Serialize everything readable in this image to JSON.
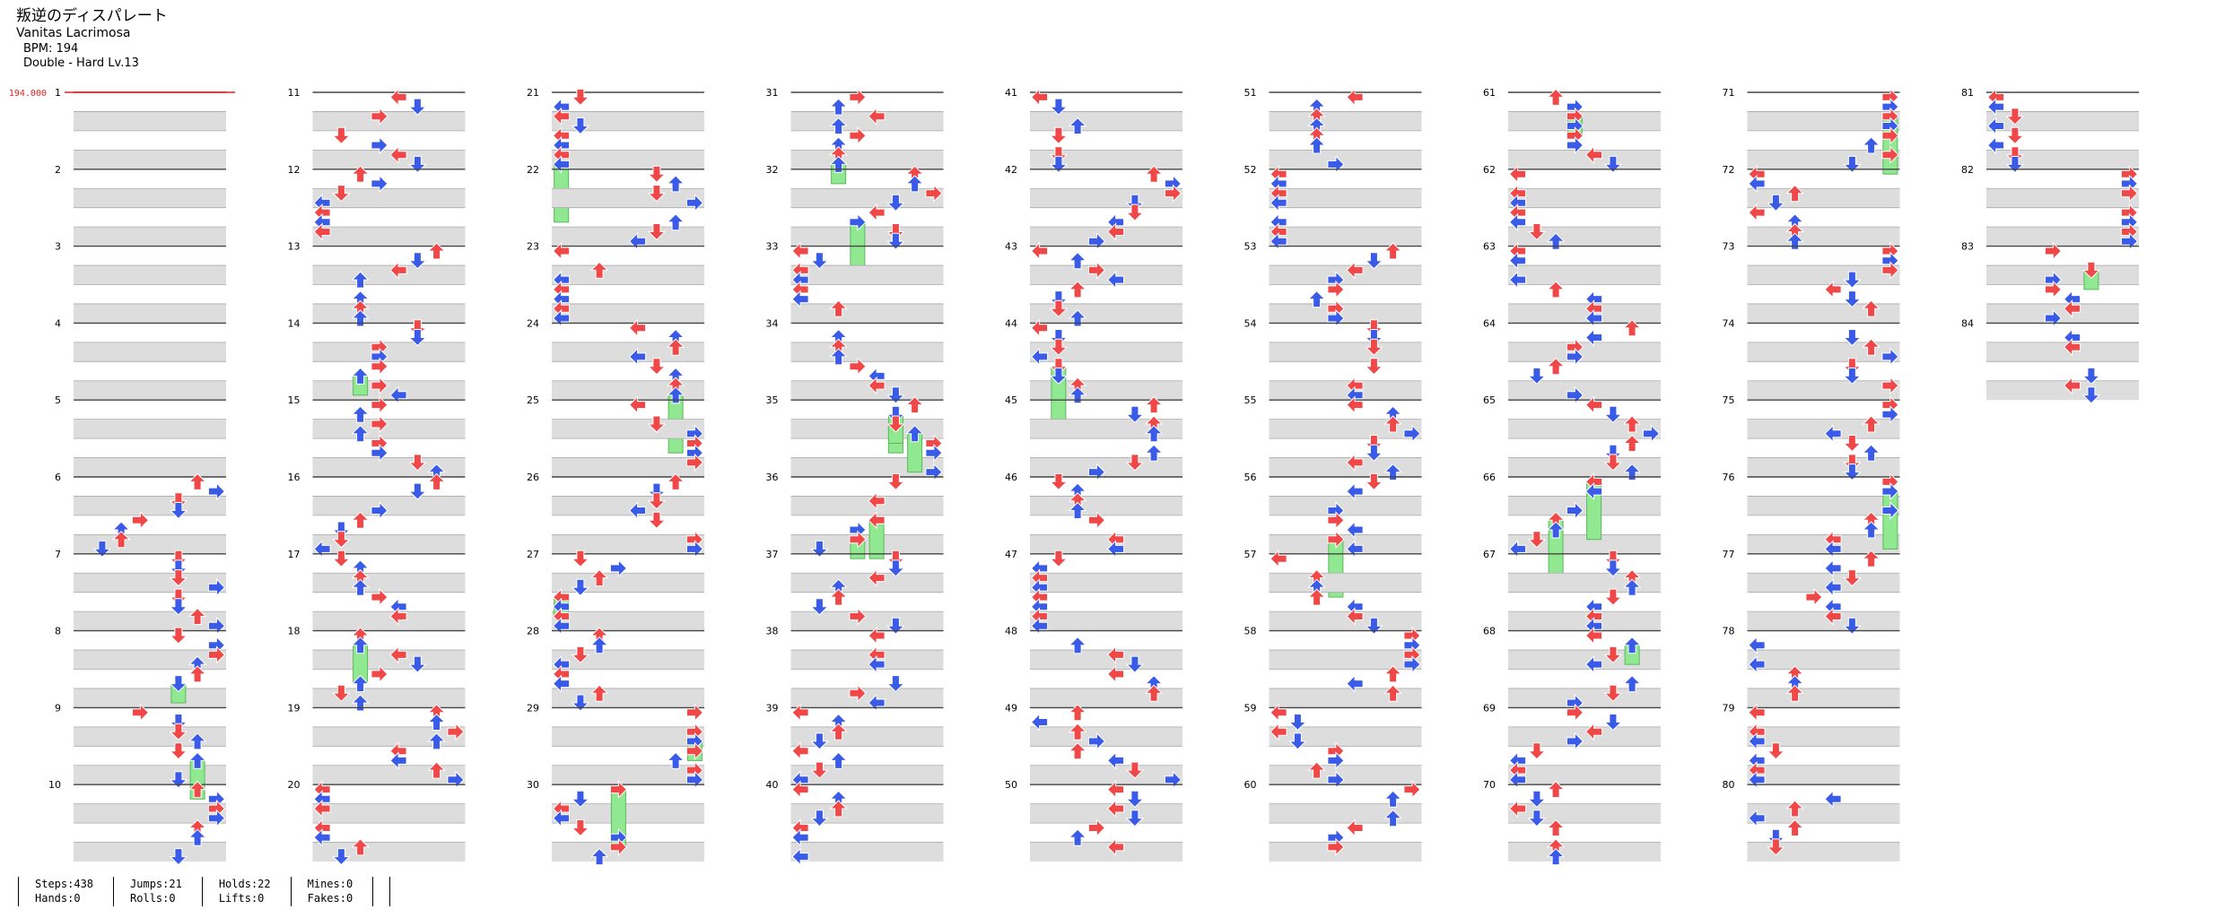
{
  "header": {
    "title": "叛逆のディスパレート",
    "artist": "Vanitas Lacrimosa",
    "bpm_line": "BPM: 194",
    "difficulty_line": "Double - Hard  Lv.13"
  },
  "bpm_marker": {
    "label": "194.000",
    "color": "#e02020"
  },
  "colors": {
    "red_arrow": "#f04848",
    "blue_arrow": "#3a5be8",
    "hold": "#90e890",
    "mine": "#f0e040"
  },
  "measures": {
    "first": 1,
    "last": 84,
    "per_column": 10
  },
  "stats": [
    [
      "Steps:438",
      "Hands:0"
    ],
    [
      "Jumps:21",
      "Rolls:0"
    ],
    [
      "Holds:22",
      "Lifts:0"
    ],
    [
      "Mines:0",
      "Fakes:0"
    ]
  ]
}
